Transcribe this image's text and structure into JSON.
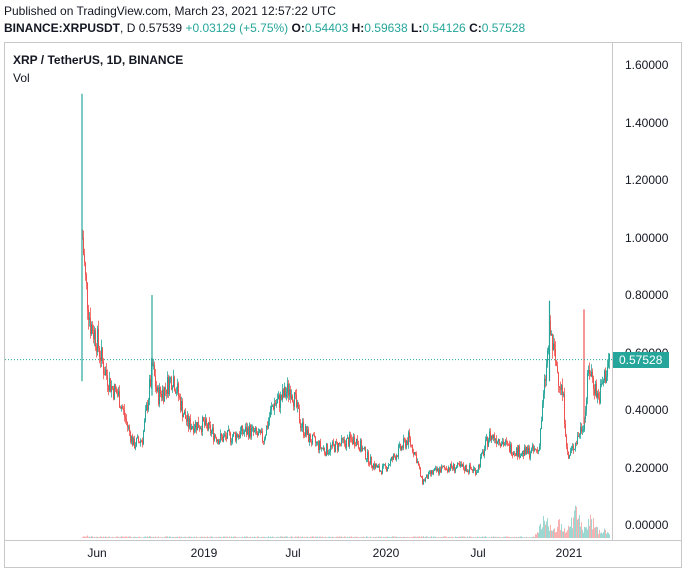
{
  "header": {
    "published": "Published on TradingView.com, March 23, 2021 12:57:22 UTC",
    "symbol": "BINANCE:XRPUSDT",
    "interval": "D",
    "last": "0.57539",
    "change": "+0.03129 (+5.75%)",
    "open_label": "O:",
    "open": "0.54403",
    "high_label": "H:",
    "high": "0.59638",
    "low_label": "L:",
    "low": "0.54126",
    "close_label": "C:",
    "close": "0.57528"
  },
  "legend": {
    "title": "XRP / TetherUS, 1D, BINANCE",
    "volume": "Vol"
  },
  "price_tag": "0.57528",
  "colors": {
    "up": "#26a69a",
    "down": "#ef5350",
    "text": "#131722",
    "border": "#c8c8c8"
  },
  "chart_data": {
    "type": "candlestick",
    "title": "XRP / TetherUS, 1D, BINANCE",
    "xlabel": "",
    "ylabel": "",
    "ylim": [
      0,
      1.6
    ],
    "y_ticks": [
      "1.60000",
      "1.40000",
      "1.20000",
      "1.00000",
      "0.80000",
      "0.60000",
      "0.40000",
      "0.20000",
      "0.00000"
    ],
    "x_ticks": [
      "Jun",
      "2019",
      "Jul",
      "2020",
      "Jul",
      "2021"
    ],
    "grid": false,
    "last_price": 0.57528,
    "series": [
      {
        "name": "XRP/USDT price (approx. close)",
        "x": [
          "2018-05-04",
          "2018-05-10",
          "2018-05-20",
          "2018-06-01",
          "2018-06-15",
          "2018-07-01",
          "2018-07-15",
          "2018-08-01",
          "2018-08-14",
          "2018-09-01",
          "2018-09-21",
          "2018-10-01",
          "2018-10-15",
          "2018-11-01",
          "2018-11-20",
          "2018-12-01",
          "2019-01-01",
          "2019-02-01",
          "2019-03-01",
          "2019-04-01",
          "2019-05-01",
          "2019-05-20",
          "2019-06-01",
          "2019-06-25",
          "2019-07-15",
          "2019-08-01",
          "2019-09-01",
          "2019-10-01",
          "2019-11-01",
          "2019-12-01",
          "2019-12-20",
          "2020-01-01",
          "2020-02-01",
          "2020-02-15",
          "2020-03-01",
          "2020-03-13",
          "2020-04-01",
          "2020-05-01",
          "2020-06-01",
          "2020-07-01",
          "2020-07-25",
          "2020-08-15",
          "2020-09-01",
          "2020-10-01",
          "2020-11-01",
          "2020-11-24",
          "2020-12-01",
          "2020-12-20",
          "2020-12-30",
          "2021-01-01",
          "2021-01-15",
          "2021-02-01",
          "2021-02-10",
          "2021-03-01",
          "2021-03-23"
        ],
        "values": [
          1.0,
          0.85,
          0.7,
          0.65,
          0.55,
          0.48,
          0.45,
          0.35,
          0.28,
          0.3,
          0.55,
          0.45,
          0.47,
          0.52,
          0.4,
          0.35,
          0.35,
          0.3,
          0.31,
          0.33,
          0.3,
          0.42,
          0.43,
          0.48,
          0.35,
          0.3,
          0.26,
          0.28,
          0.3,
          0.22,
          0.19,
          0.2,
          0.27,
          0.3,
          0.24,
          0.15,
          0.18,
          0.2,
          0.2,
          0.19,
          0.31,
          0.3,
          0.27,
          0.25,
          0.26,
          0.68,
          0.6,
          0.45,
          0.22,
          0.24,
          0.29,
          0.37,
          0.55,
          0.44,
          0.575
        ]
      },
      {
        "name": "Vol",
        "note": "volume histogram at bottom, spikes near Dec 2020 and Jan-Feb 2021",
        "x": [
          "2018-05",
          "2018-09",
          "2019-06",
          "2020-03",
          "2020-07",
          "2020-11",
          "2020-12",
          "2021-01",
          "2021-02",
          "2021-03"
        ],
        "relative_values": [
          0.05,
          0.04,
          0.03,
          0.05,
          0.04,
          0.5,
          0.4,
          0.7,
          0.5,
          0.2
        ]
      }
    ],
    "annotations": [
      "Spike high ~1.50 on first day (May 2018)",
      "Spike high ~0.80 in Sep 2018",
      "Highs ~0.78 in Nov 2020 and ~0.75 in Feb 2021"
    ]
  }
}
